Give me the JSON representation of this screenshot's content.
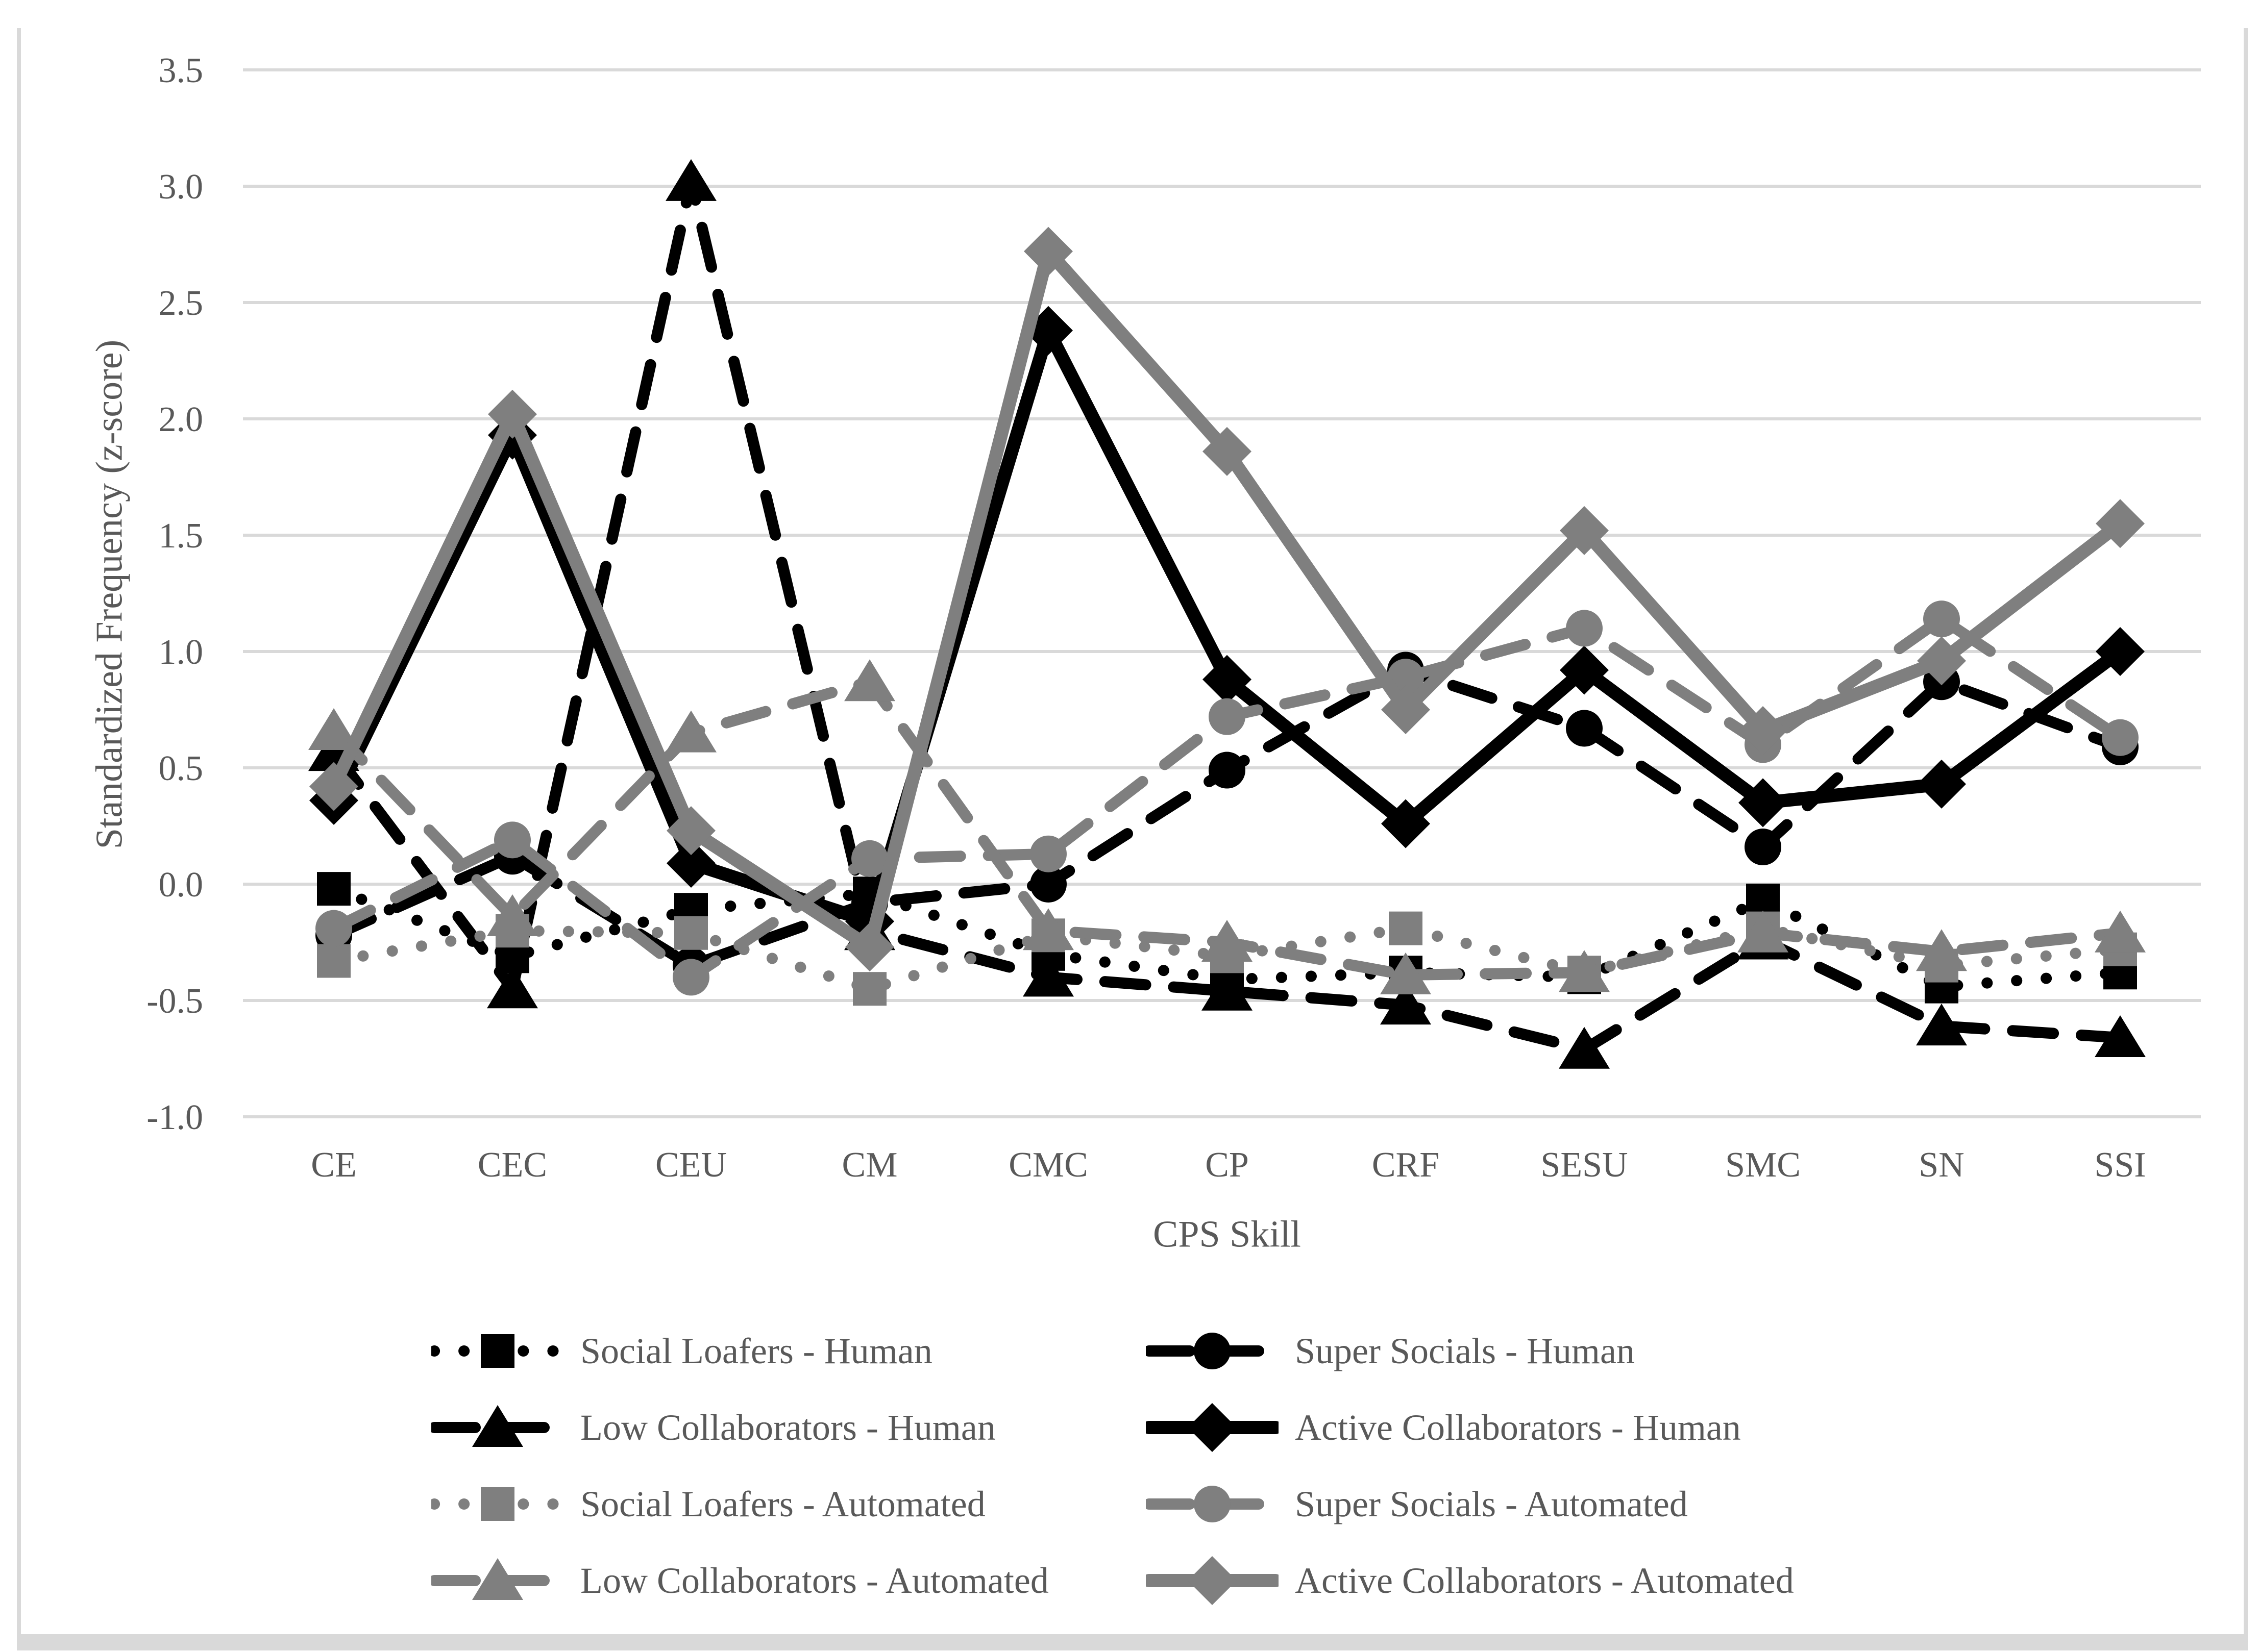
{
  "chart_data": {
    "type": "line",
    "title": "",
    "xlabel": "CPS Skill",
    "ylabel": "Standardized Frequency (z-score)",
    "ylim": [
      -1.0,
      3.5
    ],
    "ytick_step": 0.5,
    "y_tick_labels": [
      "-1.0",
      "-0.5",
      "0.0",
      "0.5",
      "1.0",
      "1.5",
      "2.0",
      "2.5",
      "3.0",
      "3.5"
    ],
    "grid": true,
    "legend_position": "bottom, two columns",
    "categories": [
      "CE",
      "CEC",
      "CEU",
      "CM",
      "CMC",
      "CP",
      "CRF",
      "SESU",
      "SMC",
      "SN",
      "SSI"
    ],
    "series": [
      {
        "name": "Social Loafers - Human",
        "color": "#000000",
        "line": "dotted",
        "marker": "square",
        "values": [
          -0.02,
          -0.31,
          -0.11,
          -0.04,
          -0.3,
          -0.41,
          -0.38,
          -0.4,
          -0.07,
          -0.44,
          -0.38
        ]
      },
      {
        "name": "Super Socials - Human",
        "color": "#000000",
        "line": "dashed",
        "marker": "circle",
        "values": [
          -0.22,
          0.12,
          -0.35,
          -0.08,
          0.0,
          0.49,
          0.92,
          0.67,
          0.16,
          0.87,
          0.59
        ]
      },
      {
        "name": "Low Collaborators - Human",
        "color": "#000000",
        "line": "dashed",
        "marker": "triangle",
        "values": [
          0.57,
          -0.45,
          3.02,
          -0.2,
          -0.4,
          -0.46,
          -0.52,
          -0.71,
          -0.24,
          -0.61,
          -0.66
        ]
      },
      {
        "name": "Active Collaborators - Human",
        "color": "#000000",
        "line": "solid",
        "marker": "diamond",
        "values": [
          0.36,
          1.93,
          0.09,
          -0.16,
          2.38,
          0.88,
          0.26,
          0.92,
          0.35,
          0.43,
          1.0
        ]
      },
      {
        "name": "Social Loafers - Automated",
        "color": "#7f7f7f",
        "line": "dotted",
        "marker": "square",
        "values": [
          -0.33,
          -0.2,
          -0.21,
          -0.45,
          -0.22,
          -0.31,
          -0.19,
          -0.38,
          -0.19,
          -0.35,
          -0.28
        ]
      },
      {
        "name": "Super Socials - Automated",
        "color": "#7f7f7f",
        "line": "dashed",
        "marker": "circle",
        "values": [
          -0.19,
          0.19,
          -0.4,
          0.11,
          0.13,
          0.72,
          0.89,
          1.1,
          0.6,
          1.14,
          0.63
        ]
      },
      {
        "name": "Low Collaborators - Automated",
        "color": "#7f7f7f",
        "line": "dashed",
        "marker": "triangle",
        "values": [
          0.66,
          -0.14,
          0.65,
          0.87,
          -0.2,
          -0.25,
          -0.39,
          -0.38,
          -0.21,
          -0.29,
          -0.21
        ]
      },
      {
        "name": "Active Collaborators - Automated",
        "color": "#7f7f7f",
        "line": "solid",
        "marker": "diamond",
        "values": [
          0.42,
          2.02,
          0.23,
          -0.27,
          2.72,
          1.86,
          0.75,
          1.52,
          0.66,
          0.96,
          1.55
        ]
      }
    ],
    "legend_entries_row_major": [
      "Social Loafers - Human",
      "Super Socials - Human",
      "Low Collaborators - Human",
      "Active Collaborators - Human",
      "Social Loafers - Automated",
      "Super Socials - Automated",
      "Low Collaborators - Automated",
      "Active Collaborators - Automated"
    ]
  },
  "colors": {
    "grid": "#d9d9d9",
    "frame_border": "#d9d9d9",
    "text": "#595959",
    "series_black": "#000000",
    "series_gray": "#7f7f7f"
  }
}
